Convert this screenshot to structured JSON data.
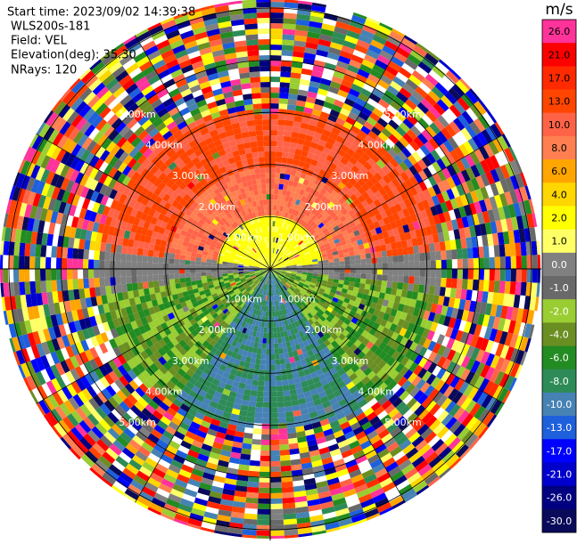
{
  "info": {
    "start_time": "Start time: 2023/09/02 14:39:38",
    "instrument": "WLS200s-181",
    "field": "Field: VEL",
    "elevation": "Elevation(deg): 35.30",
    "nrays": "NRays: 120"
  },
  "range_rings": [
    {
      "label": "1.00km"
    },
    {
      "label": "2.00km"
    },
    {
      "label": "3.00km"
    },
    {
      "label": "4.00km"
    },
    {
      "label": "5.00km"
    }
  ],
  "colorbar": {
    "unit": "m/s",
    "levels": [
      {
        "label": "26.0",
        "color": "#ff3399"
      },
      {
        "label": "21.0",
        "color": "#ff0000"
      },
      {
        "label": "17.0",
        "color": "#ff2a00"
      },
      {
        "label": "13.0",
        "color": "#ff4500"
      },
      {
        "label": "10.0",
        "color": "#ff6347"
      },
      {
        "label": "8.0",
        "color": "#ff7f50"
      },
      {
        "label": "6.0",
        "color": "#ffa500"
      },
      {
        "label": "4.0",
        "color": "#ffd700"
      },
      {
        "label": "2.0",
        "color": "#ffff00"
      },
      {
        "label": "1.0",
        "color": "#ffff66"
      },
      {
        "label": "0.0",
        "color": "#808080"
      },
      {
        "label": "-1.0",
        "color": "#696969"
      },
      {
        "label": "-2.0",
        "color": "#9acd32"
      },
      {
        "label": "-4.0",
        "color": "#6b8e23"
      },
      {
        "label": "-6.0",
        "color": "#228b22"
      },
      {
        "label": "-8.0",
        "color": "#2e8b57"
      },
      {
        "label": "-10.0",
        "color": "#4682b4"
      },
      {
        "label": "-13.0",
        "color": "#1e5fdc"
      },
      {
        "label": "-17.0",
        "color": "#0000ff"
      },
      {
        "label": "-21.0",
        "color": "#0000cd"
      },
      {
        "label": "-26.0",
        "color": "#000080"
      },
      {
        "label": "-30.0",
        "color": "#0a0a5a"
      }
    ]
  }
}
